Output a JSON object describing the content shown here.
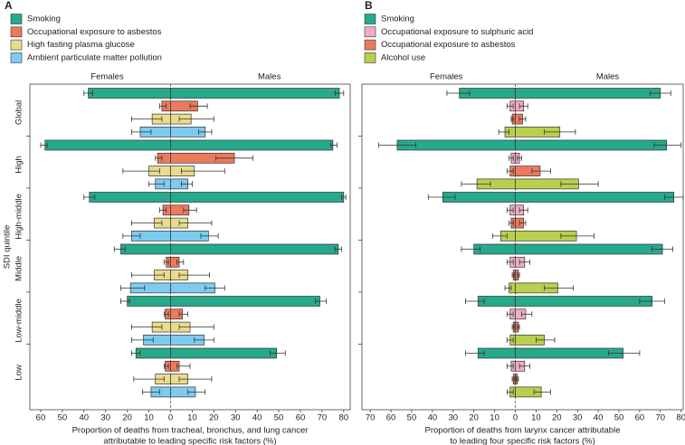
{
  "chart_data": [
    {
      "type": "butterfly",
      "panel_label": "A",
      "female_label": "Females",
      "male_label": "Males",
      "ylabel": "SDI quintile",
      "xlabel": [
        "Proportion of deaths from tracheal, bronchus, and lung cancer",
        "attributable to leading specific risk factors (%)"
      ],
      "categories": [
        "Global",
        "High",
        "High-middle",
        "Middle",
        "Low-middle",
        "Low"
      ],
      "xlim": [
        -65,
        83
      ],
      "xticks": [
        {
          "value": -60,
          "label": "60"
        },
        {
          "value": -50,
          "label": "50"
        },
        {
          "value": -40,
          "label": "40"
        },
        {
          "value": -30,
          "label": "30"
        },
        {
          "value": -20,
          "label": "20"
        },
        {
          "value": -10,
          "label": "10"
        },
        0,
        10,
        20,
        30,
        40,
        50,
        60,
        70,
        80
      ],
      "series": [
        {
          "name": "Smoking",
          "color": "#27a98b",
          "female": [
            38,
            58,
            37.5,
            23,
            20,
            16
          ],
          "female_ci": [
            [
              36,
              40
            ],
            [
              57,
              60
            ],
            [
              35,
              40
            ],
            [
              21,
              26
            ],
            [
              19,
              23
            ],
            [
              14,
              18
            ]
          ],
          "male": [
            78,
            75,
            80,
            77.5,
            69,
            49
          ],
          "male_ci": [
            [
              76,
              80
            ],
            [
              74,
              77
            ],
            [
              79,
              81
            ],
            [
              76,
              79
            ],
            [
              67,
              72
            ],
            [
              46,
              53
            ]
          ]
        },
        {
          "name": "Occupational exposure to asbestos",
          "color": "#ec7a5c",
          "female": [
            4,
            6,
            3.5,
            2,
            2.5,
            2.5
          ],
          "female_ci": [
            [
              2,
              5
            ],
            [
              4,
              7
            ],
            [
              2,
              5
            ],
            [
              1,
              3
            ],
            [
              1,
              3
            ],
            [
              1,
              3
            ]
          ],
          "male": [
            12.5,
            29.5,
            8.5,
            4,
            5.5,
            4
          ],
          "male_ci": [
            [
              9,
              17
            ],
            [
              21,
              38
            ],
            [
              6,
              12
            ],
            [
              3,
              6
            ],
            [
              4,
              8
            ],
            [
              3,
              9
            ]
          ]
        },
        {
          "name": "High fasting plasma glucose",
          "color": "#e9dc8e",
          "female": [
            8.5,
            10,
            7.5,
            7.5,
            8.5,
            7
          ],
          "female_ci": [
            [
              4,
              18
            ],
            [
              5,
              22
            ],
            [
              4,
              18
            ],
            [
              3,
              18
            ],
            [
              4,
              18
            ],
            [
              3,
              17
            ]
          ],
          "male": [
            9.5,
            11,
            8,
            8,
            9,
            8
          ],
          "male_ci": [
            [
              4,
              20
            ],
            [
              5,
              25
            ],
            [
              4,
              19
            ],
            [
              4,
              18
            ],
            [
              4,
              20
            ],
            [
              4,
              19
            ]
          ]
        },
        {
          "name": "Ambient particulate matter pollution",
          "color": "#7ecbf0",
          "female": [
            14,
            7,
            18,
            18.5,
            12.5,
            9
          ],
          "female_ci": [
            [
              9,
              18
            ],
            [
              3,
              10
            ],
            [
              14,
              22
            ],
            [
              12,
              23
            ],
            [
              8,
              18
            ],
            [
              5,
              13
            ]
          ],
          "male": [
            16,
            8,
            17.5,
            20.5,
            15.5,
            11.5
          ],
          "male_ci": [
            [
              13,
              19
            ],
            [
              5,
              10
            ],
            [
              14,
              22
            ],
            [
              16,
              25
            ],
            [
              11,
              20
            ],
            [
              8,
              16
            ]
          ]
        }
      ]
    },
    {
      "type": "butterfly",
      "panel_label": "B",
      "female_label": "Females",
      "male_label": "Males",
      "xlabel": [
        "Proportion of deaths from larynx cancer attributable",
        "to leading four specific risk factors (%)"
      ],
      "categories": [
        null,
        null,
        null,
        null,
        null,
        null
      ],
      "xlim": [
        -74,
        81
      ],
      "xticks": [
        {
          "value": -70,
          "label": "70"
        },
        {
          "value": -60,
          "label": "60"
        },
        {
          "value": -50,
          "label": "50"
        },
        {
          "value": -40,
          "label": "40"
        },
        {
          "value": -30,
          "label": "30"
        },
        {
          "value": -20,
          "label": "20"
        },
        {
          "value": -10,
          "label": "10"
        },
        0,
        10,
        20,
        30,
        40,
        50,
        60,
        70,
        80
      ],
      "series": [
        {
          "name": "Smoking",
          "color": "#27a98b",
          "female": [
            27,
            57,
            35,
            20,
            18,
            18
          ],
          "female_ci": [
            [
              22,
              33
            ],
            [
              48,
              66
            ],
            [
              29,
              42
            ],
            [
              17,
              26
            ],
            [
              15,
              24
            ],
            [
              15,
              24
            ]
          ],
          "male": [
            70,
            73,
            76.5,
            71,
            66,
            52
          ],
          "male_ci": [
            [
              65,
              75
            ],
            [
              67,
              80
            ],
            [
              72,
              81
            ],
            [
              66,
              76
            ],
            [
              60,
              72
            ],
            [
              45,
              60
            ]
          ]
        },
        {
          "name": "Occupational exposure to sulphuric acid",
          "color": "#f0aec4",
          "female": [
            2.5,
            2,
            2.5,
            2.5,
            2.5,
            2
          ],
          "female_ci": [
            [
              1,
              4
            ],
            [
              1,
              3
            ],
            [
              1,
              4
            ],
            [
              1,
              4
            ],
            [
              1,
              4
            ],
            [
              1,
              4
            ]
          ],
          "male": [
            4,
            2,
            4,
            4.5,
            5,
            4.5
          ],
          "male_ci": [
            [
              2,
              6
            ],
            [
              1,
              3
            ],
            [
              2,
              6
            ],
            [
              2,
              7
            ],
            [
              3,
              8
            ],
            [
              2,
              7
            ]
          ]
        },
        {
          "name": "Occupational exposure to asbestos",
          "color": "#ec7a5c",
          "female": [
            1.5,
            2.5,
            2,
            1,
            1,
            1
          ],
          "female_ci": [
            [
              1,
              2
            ],
            [
              1,
              4
            ],
            [
              1,
              3
            ],
            [
              0.5,
              1.5
            ],
            [
              0.5,
              1.5
            ],
            [
              0.5,
              1.5
            ]
          ],
          "male": [
            3.5,
            12,
            4,
            1.5,
            1.5,
            1
          ],
          "male_ci": [
            [
              2,
              5
            ],
            [
              8,
              17
            ],
            [
              2,
              5
            ],
            [
              1,
              2
            ],
            [
              1,
              2
            ],
            [
              0.5,
              1.5
            ]
          ]
        },
        {
          "name": "Alcohol use",
          "color": "#b8d04e",
          "female": [
            5,
            18.5,
            7,
            3,
            2.5,
            2.5
          ],
          "female_ci": [
            [
              3,
              8
            ],
            [
              12,
              26
            ],
            [
              4,
              11
            ],
            [
              2,
              5
            ],
            [
              1,
              4
            ],
            [
              1,
              4
            ]
          ],
          "male": [
            21.5,
            30.5,
            29.5,
            20.5,
            14,
            12.5
          ],
          "male_ci": [
            [
              14,
              29
            ],
            [
              22,
              40
            ],
            [
              22,
              38
            ],
            [
              14,
              28
            ],
            [
              10,
              19
            ],
            [
              9,
              17
            ]
          ]
        }
      ]
    }
  ]
}
